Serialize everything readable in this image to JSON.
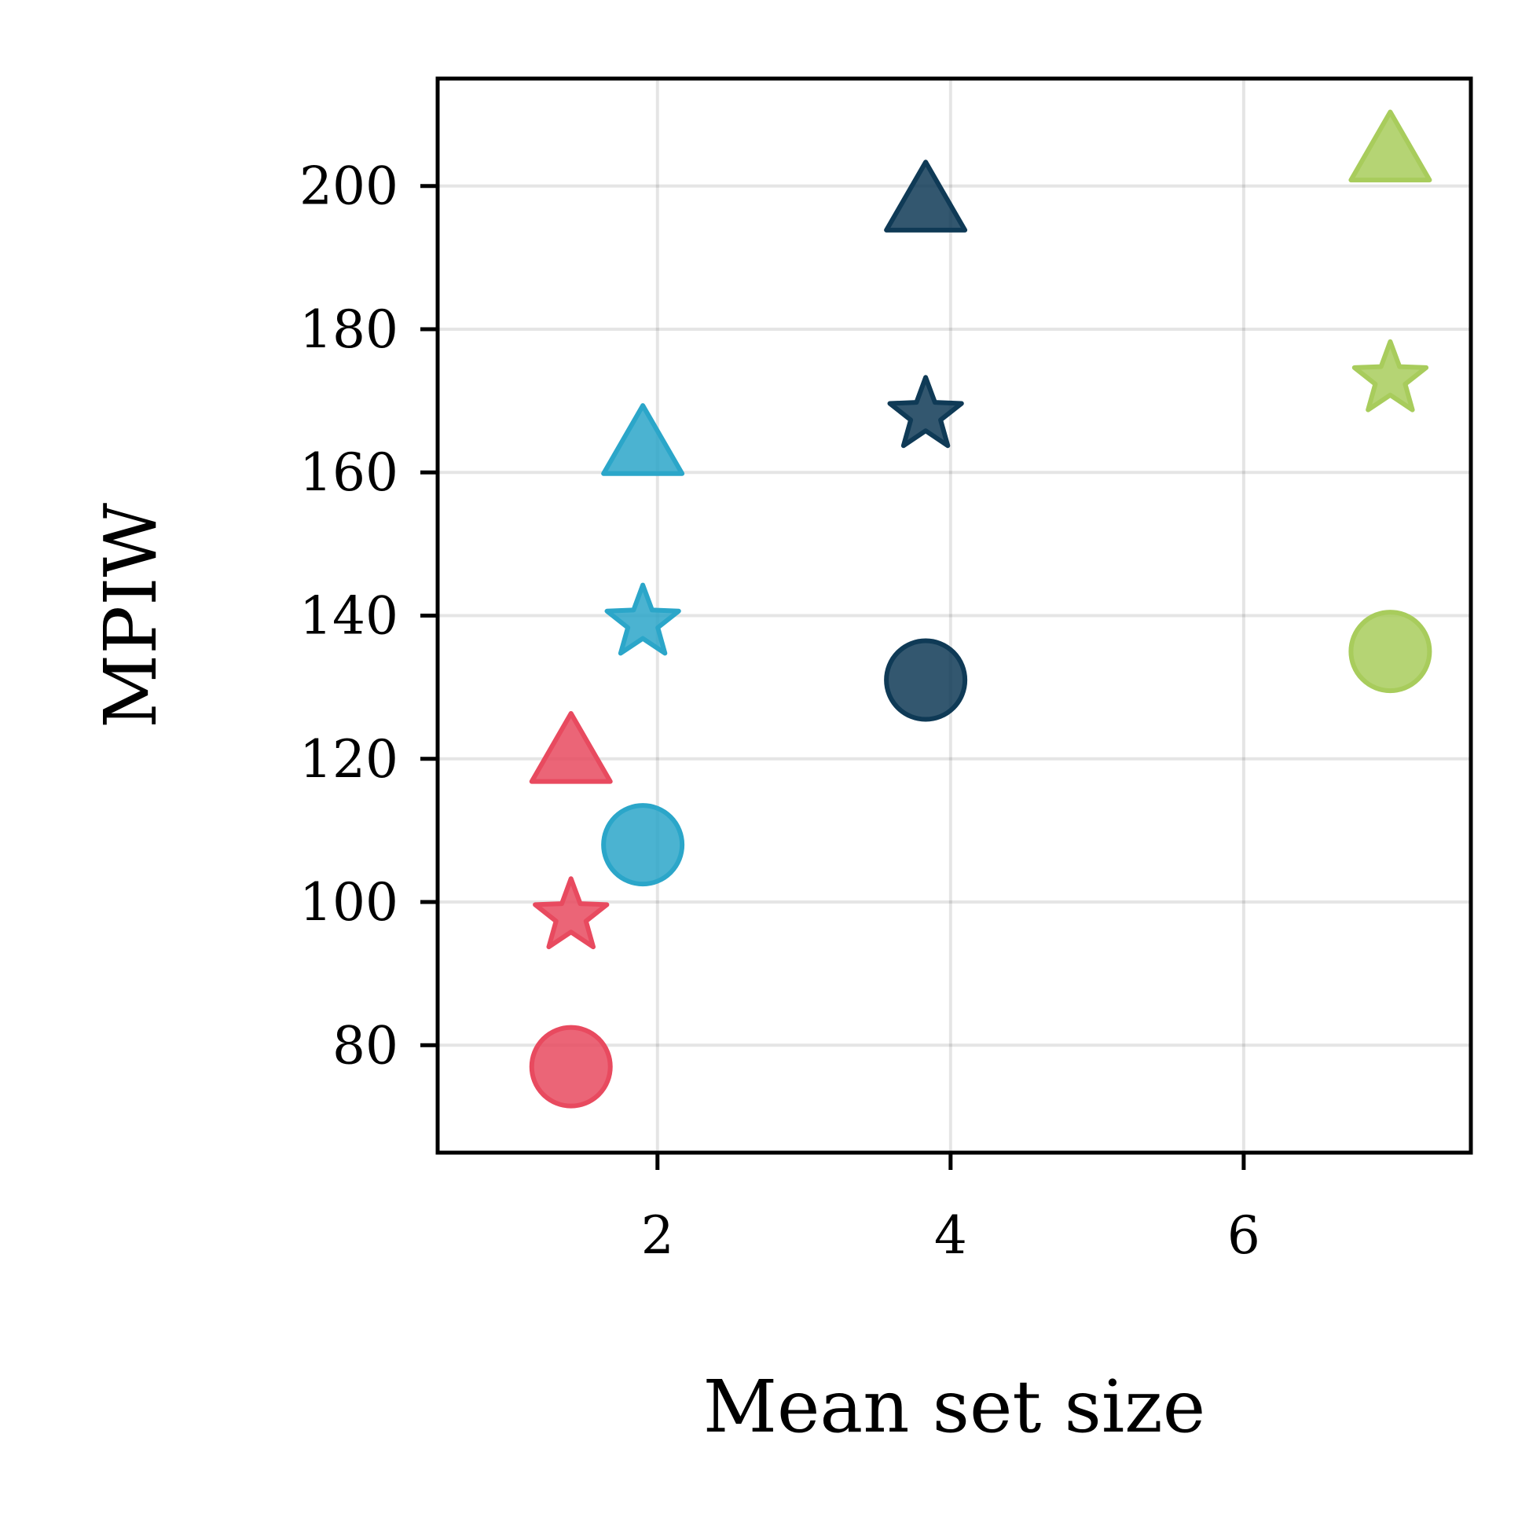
{
  "chart_data": {
    "type": "scatter",
    "title": "",
    "xlabel": "Mean set size",
    "ylabel": "MPIW",
    "xlim": [
      0.5,
      7.55
    ],
    "ylim": [
      65,
      215
    ],
    "xticks": [
      2,
      4,
      6
    ],
    "yticks": [
      80,
      100,
      120,
      140,
      160,
      180,
      200
    ],
    "grid": true,
    "legend": "none",
    "marker_shapes": [
      "circle",
      "star",
      "triangle"
    ],
    "groups": [
      {
        "color": "#e84a5f",
        "points": [
          {
            "marker": "circle",
            "x": 1.41,
            "y": 77
          },
          {
            "marker": "star",
            "x": 1.41,
            "y": 98
          },
          {
            "marker": "triangle",
            "x": 1.41,
            "y": 120
          }
        ]
      },
      {
        "color": "#2ba6c9",
        "points": [
          {
            "marker": "circle",
            "x": 1.9,
            "y": 108
          },
          {
            "marker": "star",
            "x": 1.9,
            "y": 139
          },
          {
            "marker": "triangle",
            "x": 1.9,
            "y": 163
          }
        ]
      },
      {
        "color": "#0f3a56",
        "points": [
          {
            "marker": "circle",
            "x": 3.83,
            "y": 131
          },
          {
            "marker": "star",
            "x": 3.83,
            "y": 168
          },
          {
            "marker": "triangle",
            "x": 3.83,
            "y": 197
          }
        ]
      },
      {
        "color": "#a8cc5c",
        "points": [
          {
            "marker": "circle",
            "x": 7.0,
            "y": 135
          },
          {
            "marker": "star",
            "x": 7.0,
            "y": 173
          },
          {
            "marker": "triangle",
            "x": 7.0,
            "y": 204
          }
        ]
      }
    ]
  }
}
